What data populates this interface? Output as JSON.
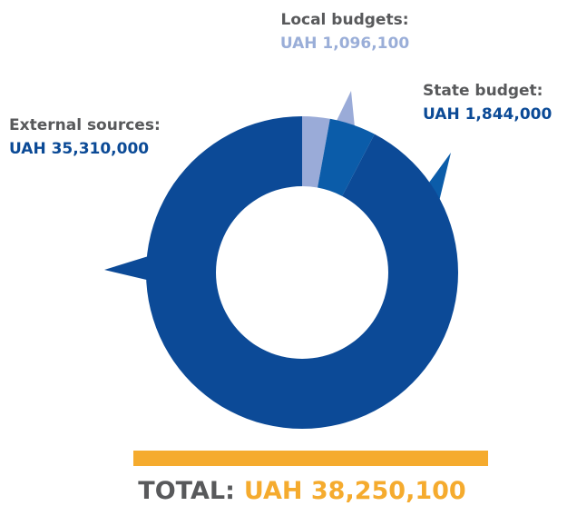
{
  "chart_data": {
    "type": "donut",
    "series": [
      {
        "name": "Local budgets:",
        "color": "#9aabd8",
        "label_color": "#9aaed8",
        "values": [
          1096100
        ],
        "value_labels": [
          "UAH 1,096,100"
        ]
      },
      {
        "name": "State budget:",
        "color": "#0b5ca9",
        "label_color": "#0b4a96",
        "values": [
          1844000
        ],
        "value_labels": [
          "UAH 1,844,000"
        ]
      },
      {
        "name": "External sources:",
        "color": "#0c4a97",
        "label_color": "#0b4a96",
        "values": [
          35310000
        ],
        "value_labels": [
          "UAH 35,310,000"
        ]
      }
    ],
    "total_title": "TOTAL:",
    "total": 38250100,
    "total_value_label": "UAH 38,250,100",
    "total_color": "#f5ab2e"
  }
}
